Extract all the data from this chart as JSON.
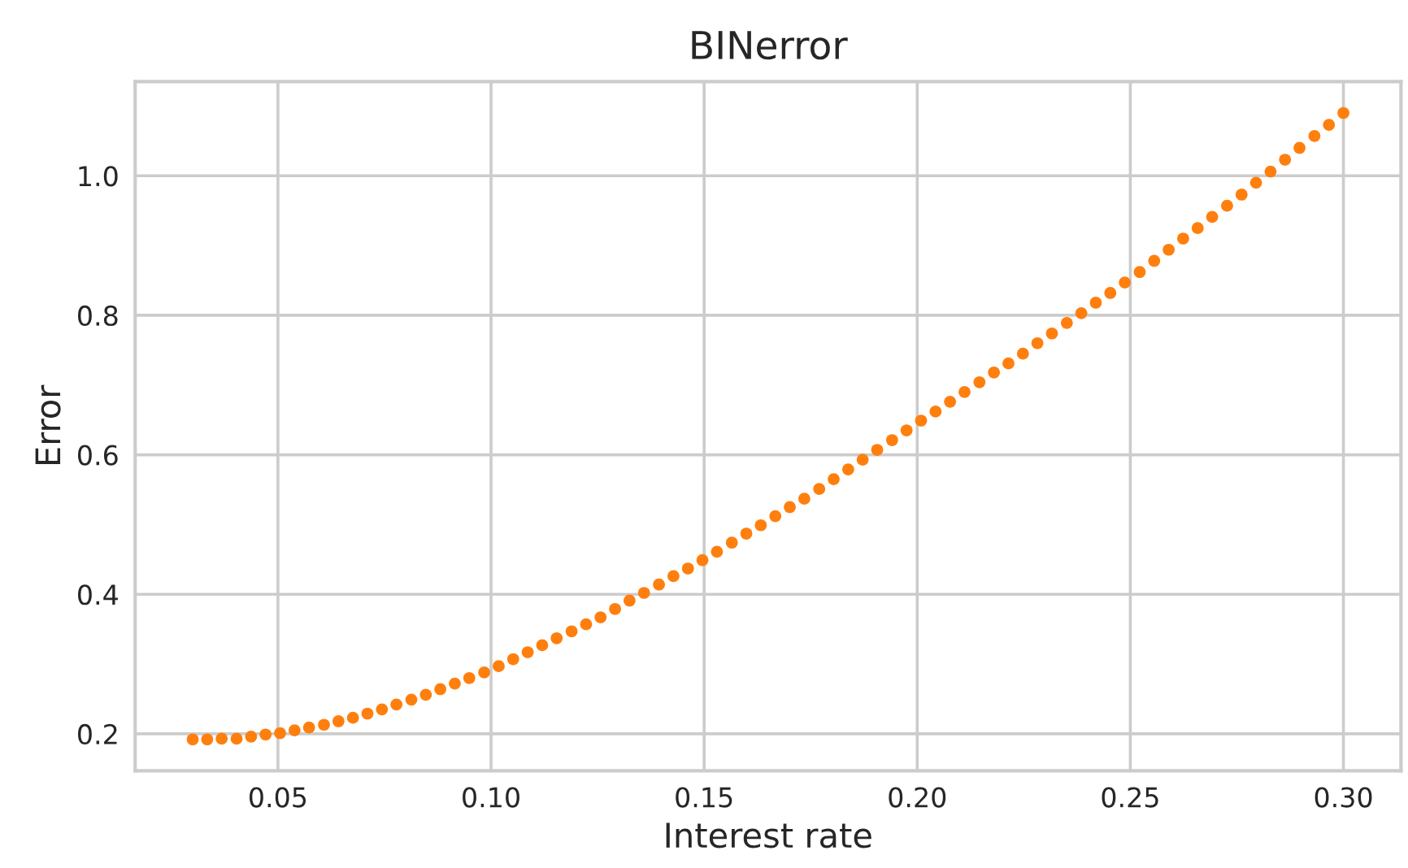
{
  "chart_data": {
    "type": "scatter",
    "title": "BINerror",
    "xlabel": "Interest rate",
    "ylabel": "Error",
    "x": [
      0.03,
      0.0334,
      0.0368,
      0.0403,
      0.0437,
      0.0471,
      0.0505,
      0.0539,
      0.0573,
      0.0608,
      0.0642,
      0.0676,
      0.071,
      0.0744,
      0.0778,
      0.0813,
      0.0847,
      0.0881,
      0.0915,
      0.0949,
      0.0984,
      0.1018,
      0.1052,
      0.1086,
      0.112,
      0.1154,
      0.1189,
      0.1223,
      0.1257,
      0.1291,
      0.1325,
      0.1359,
      0.1394,
      0.1428,
      0.1462,
      0.1496,
      0.153,
      0.1565,
      0.1599,
      0.1633,
      0.1667,
      0.1701,
      0.1735,
      0.177,
      0.1804,
      0.1838,
      0.1872,
      0.1906,
      0.1941,
      0.1975,
      0.2009,
      0.2043,
      0.2077,
      0.2111,
      0.2146,
      0.218,
      0.2214,
      0.2248,
      0.2282,
      0.2316,
      0.2351,
      0.2385,
      0.2419,
      0.2453,
      0.2487,
      0.2522,
      0.2556,
      0.259,
      0.2624,
      0.2658,
      0.2692,
      0.2727,
      0.2761,
      0.2795,
      0.2829,
      0.2863,
      0.2897,
      0.2932,
      0.2966,
      0.3
    ],
    "series": [
      {
        "color": "#ff7f0e",
        "values": [
          0.192,
          0.192,
          0.193,
          0.193,
          0.196,
          0.199,
          0.201,
          0.205,
          0.209,
          0.213,
          0.218,
          0.223,
          0.229,
          0.235,
          0.242,
          0.249,
          0.256,
          0.264,
          0.272,
          0.28,
          0.288,
          0.297,
          0.307,
          0.317,
          0.327,
          0.337,
          0.347,
          0.357,
          0.367,
          0.379,
          0.391,
          0.402,
          0.414,
          0.426,
          0.437,
          0.449,
          0.461,
          0.474,
          0.487,
          0.499,
          0.512,
          0.525,
          0.537,
          0.551,
          0.565,
          0.579,
          0.593,
          0.607,
          0.621,
          0.635,
          0.649,
          0.662,
          0.676,
          0.69,
          0.704,
          0.718,
          0.731,
          0.745,
          0.76,
          0.774,
          0.789,
          0.803,
          0.818,
          0.832,
          0.847,
          0.862,
          0.878,
          0.894,
          0.91,
          0.925,
          0.941,
          0.957,
          0.973,
          0.99,
          1.006,
          1.023,
          1.04,
          1.057,
          1.073,
          1.09
        ]
      }
    ],
    "xlim": [
      0.0165,
      0.3135
    ],
    "ylim": [
      0.147,
      1.135
    ],
    "xticks": [
      {
        "value": 0.05,
        "label": "0.05"
      },
      {
        "value": 0.1,
        "label": "0.10"
      },
      {
        "value": 0.15,
        "label": "0.15"
      },
      {
        "value": 0.2,
        "label": "0.20"
      },
      {
        "value": 0.25,
        "label": "0.25"
      },
      {
        "value": 0.3,
        "label": "0.30"
      }
    ],
    "yticks": [
      {
        "value": 0.2,
        "label": "0.2"
      },
      {
        "value": 0.4,
        "label": "0.4"
      },
      {
        "value": 0.6,
        "label": "0.6"
      },
      {
        "value": 0.8,
        "label": "0.8"
      },
      {
        "value": 1.0,
        "label": "1.0"
      }
    ],
    "grid": true,
    "marker": "circle"
  }
}
